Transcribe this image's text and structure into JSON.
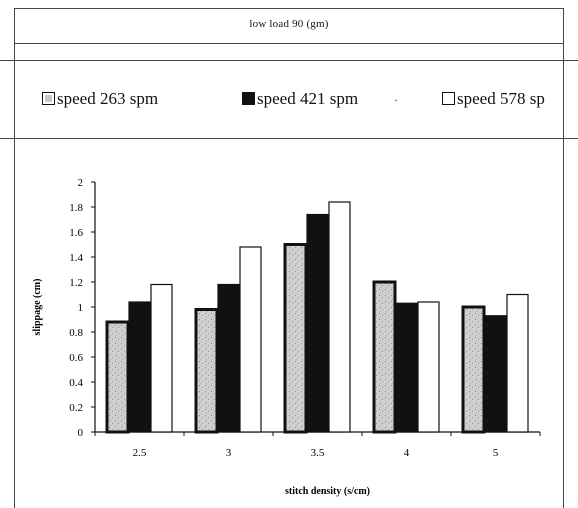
{
  "chart_data": {
    "type": "bar",
    "title": "low  load 90 (gm)",
    "xlabel": "stitch density (s/cm)",
    "ylabel": "slippage (cm)",
    "categories": [
      "2.5",
      "3",
      "3.5",
      "4",
      "5"
    ],
    "ylim": [
      0,
      2
    ],
    "yticks": [
      "0",
      "0.2",
      "0.4",
      "0.6",
      "0.8",
      "1",
      "1.2",
      "1.4",
      "1.6",
      "1.8",
      "2"
    ],
    "legend_position": "top",
    "grid": false,
    "series": [
      {
        "name": "speed 263 spm",
        "values": [
          0.88,
          0.98,
          1.5,
          1.2,
          1.0
        ],
        "color": "#c8c8c8"
      },
      {
        "name": "speed 421 spm",
        "values": [
          1.04,
          1.18,
          1.74,
          1.03,
          0.93
        ],
        "color": "#111111"
      },
      {
        "name": "speed 578 sp",
        "values": [
          1.18,
          1.48,
          1.84,
          1.04,
          1.1
        ],
        "color": "#ffffff"
      }
    ]
  },
  "legend_extra_mark": "·"
}
